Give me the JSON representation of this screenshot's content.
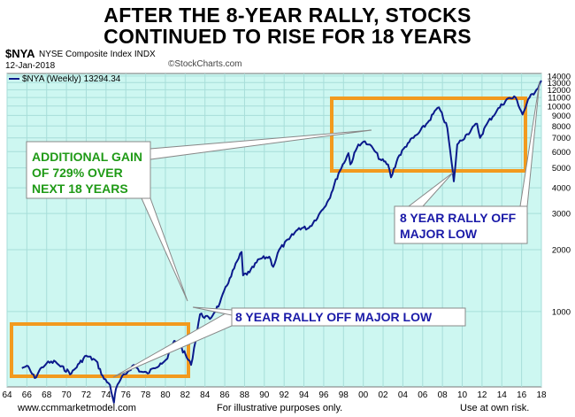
{
  "headline": {
    "line1": "AFTER THE 8-YEAR RALLY, STOCKS",
    "line2": "CONTINUED TO RISE FOR 18 YEARS"
  },
  "header": {
    "symbol": "$NYA",
    "name": "NYSE Composite Index  INDX",
    "date": "12-Jan-2018",
    "watermark": "©StockCharts.com",
    "legend_label": "$NYA (Weekly) 13294.34"
  },
  "annotations": {
    "gain_line1": "ADDITIONAL GAIN",
    "gain_line2": "OF 729% OVER",
    "gain_line3": "NEXT 18 YEARS",
    "rally_left": "8 YEAR RALLY OFF MAJOR LOW",
    "rally_right_line1": "8 YEAR RALLY OFF",
    "rally_right_line2": "MAJOR LOW"
  },
  "footer": {
    "website": "www.ccmmarketmodel.com",
    "illustrative": "For illustrative purposes only.",
    "risk": "Use at own risk."
  },
  "colors": {
    "plot_bg": "#cdf7f1",
    "grid": "#a7ded9",
    "line": "#0b1a8c",
    "box": "#f29a1e",
    "gain_text": "#1f9a16",
    "rally_text": "#1a1aa8",
    "callout_border": "#888888"
  },
  "chart_data": {
    "type": "line",
    "title": "$NYA NYSE Composite Index (Weekly)",
    "scale": "log",
    "xlabel": "",
    "ylabel": "",
    "xlim": [
      1964,
      2018
    ],
    "ylim": [
      430,
      14400
    ],
    "x_ticks": [
      "64",
      "66",
      "68",
      "70",
      "72",
      "74",
      "76",
      "78",
      "80",
      "82",
      "84",
      "86",
      "88",
      "90",
      "92",
      "94",
      "96",
      "98",
      "00",
      "02",
      "04",
      "06",
      "08",
      "10",
      "12",
      "14",
      "16",
      "18"
    ],
    "y_ticks": [
      1000,
      2000,
      3000,
      4000,
      5000,
      6000,
      7000,
      8000,
      9000,
      10000,
      11000,
      12000,
      13000,
      14000
    ],
    "last_value": 13294.34,
    "series": [
      {
        "name": "$NYA (Weekly)",
        "x": [
          1965.5,
          1966.0,
          1966.8,
          1967.5,
          1968.0,
          1968.9,
          1969.4,
          1970.5,
          1971.3,
          1972.0,
          1973.0,
          1973.8,
          1974.4,
          1974.8,
          1975.0,
          1975.5,
          1976.2,
          1976.8,
          1977.5,
          1978.2,
          1978.8,
          1979.5,
          1980.2,
          1980.9,
          1981.5,
          1982.6,
          1983.5,
          1984.5,
          1985.5,
          1986.5,
          1987.7,
          1987.85,
          1988.5,
          1989.5,
          1990.5,
          1990.9,
          1991.5,
          1992.5,
          1993.5,
          1994.5,
          1995.5,
          1996.5,
          1997.5,
          1998.5,
          1998.7,
          1999.5,
          2000.0,
          2000.5,
          2001.0,
          2001.7,
          2002.5,
          2002.8,
          2003.5,
          2004.5,
          2005.5,
          2006.5,
          2007.5,
          2007.8,
          2008.5,
          2009.15,
          2009.5,
          2010.5,
          2011.5,
          2011.8,
          2012.5,
          2013.5,
          2014.5,
          2015.4,
          2016.1,
          2016.8,
          2017.5,
          2018.0
        ],
        "values": [
          530,
          545,
          475,
          535,
          560,
          570,
          540,
          500,
          560,
          610,
          575,
          470,
          440,
          360,
          420,
          470,
          510,
          550,
          510,
          500,
          530,
          560,
          590,
          720,
          680,
          550,
          970,
          920,
          1100,
          1450,
          1950,
          1500,
          1550,
          1800,
          1850,
          1650,
          2000,
          2250,
          2550,
          2550,
          2950,
          3500,
          4700,
          5900,
          5200,
          6500,
          6700,
          6500,
          6200,
          5500,
          5200,
          4500,
          5600,
          6600,
          7300,
          8300,
          9800,
          9500,
          7800,
          4300,
          6500,
          7300,
          8200,
          7000,
          8200,
          9500,
          10800,
          11000,
          9100,
          11000,
          12000,
          13300
        ]
      }
    ]
  }
}
